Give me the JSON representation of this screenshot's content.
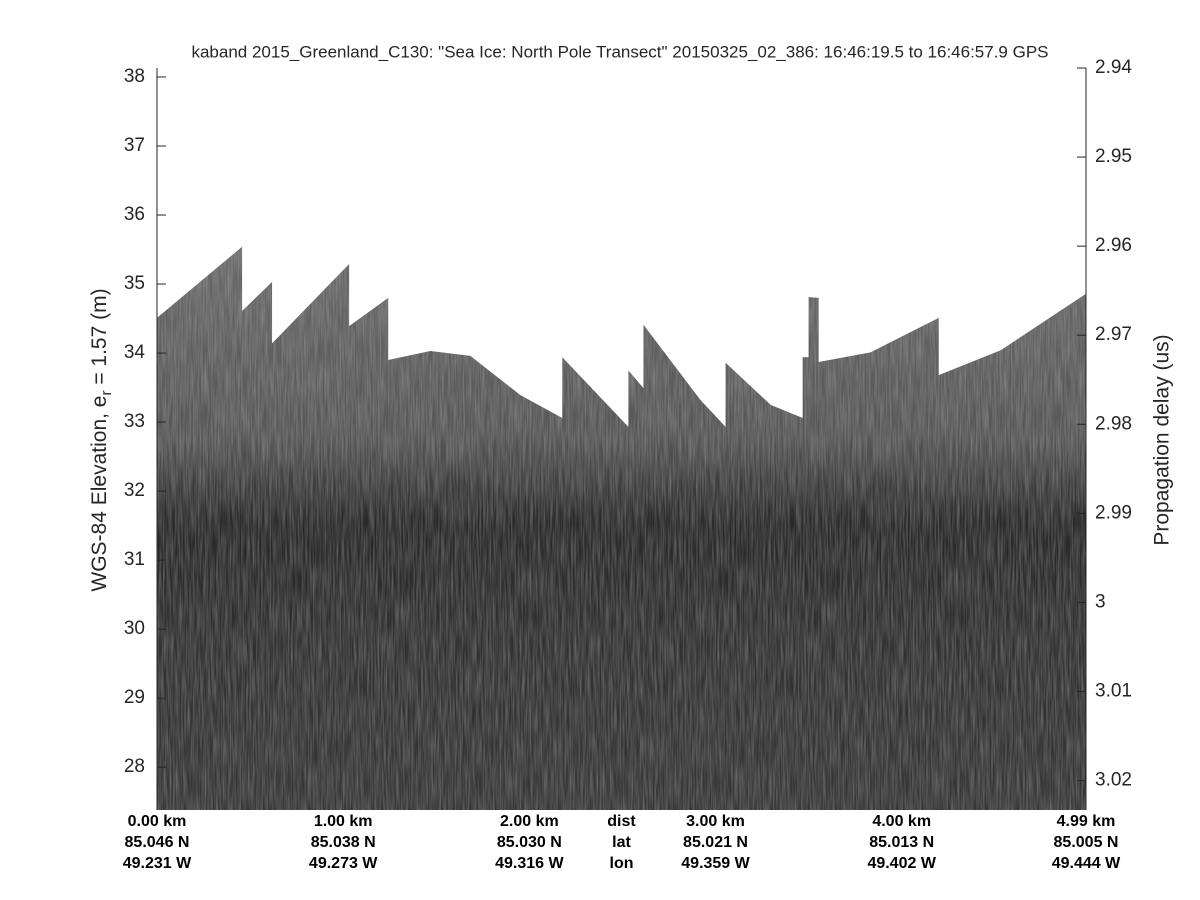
{
  "chart_data": {
    "type": "echogram",
    "title": "kaband 2015_Greenland_C130: \"Sea Ice: North Pole Transect\"  20150325_02_386: 16:46:19.5 to 16:46:57.9 GPS",
    "ylabel": {
      "before": "WGS-84 Elevation, e",
      "sub": "r",
      "after": " = 1.57 (m)"
    },
    "y2label": "Propagation delay (us)",
    "xlim": [
      0,
      4.99
    ],
    "ylim": [
      27.38,
      38.13
    ],
    "yticks": [
      28,
      29,
      30,
      31,
      32,
      33,
      34,
      35,
      36,
      37,
      38
    ],
    "y2lim": [
      2.94,
      3.0233
    ],
    "y2ticks": [
      2.94,
      2.95,
      2.96,
      2.97,
      2.98,
      2.99,
      3,
      3.01,
      3.02
    ],
    "xticks": [
      {
        "value": 0,
        "label": "0.00 km"
      },
      {
        "value": 1,
        "label": "1.00 km"
      },
      {
        "value": 2,
        "label": "2.00 km"
      },
      {
        "value": 3,
        "label": "3.00 km"
      },
      {
        "value": 4,
        "label": "4.00 km"
      },
      {
        "value": 4.99,
        "label": "4.99 km"
      }
    ],
    "lat_labels": [
      "85.046 N",
      "85.038 N",
      "85.030 N",
      "85.021 N",
      "85.013 N",
      "85.005 N"
    ],
    "lon_labels": [
      "49.231 W",
      "49.273 W",
      "49.316 W",
      "49.359 W",
      "49.402 W",
      "49.444 W"
    ],
    "row_labels": [
      "dist",
      "lat",
      "lon"
    ],
    "x": [
      0,
      0.457,
      0.457,
      0.618,
      0.618,
      1.032,
      1.032,
      1.242,
      1.242,
      1.468,
      1.683,
      1.952,
      2.177,
      2.177,
      2.532,
      2.532,
      2.613,
      2.613,
      2.919,
      3.054,
      3.054,
      3.296,
      3.468,
      3.468,
      3.5,
      3.5,
      3.554,
      3.554,
      3.833,
      4.199,
      4.199,
      4.532,
      4.99
    ],
    "values": [
      34.51,
      35.54,
      34.61,
      35.03,
      34.14,
      35.29,
      34.39,
      34.8,
      33.9,
      34.03,
      33.96,
      33.39,
      33.06,
      33.94,
      32.93,
      33.75,
      33.49,
      34.41,
      33.32,
      32.93,
      33.86,
      33.25,
      33.06,
      33.94,
      33.94,
      34.81,
      34.8,
      33.87,
      34.01,
      34.51,
      33.68,
      34.04,
      34.86
    ],
    "color": "#5e5e5e"
  }
}
